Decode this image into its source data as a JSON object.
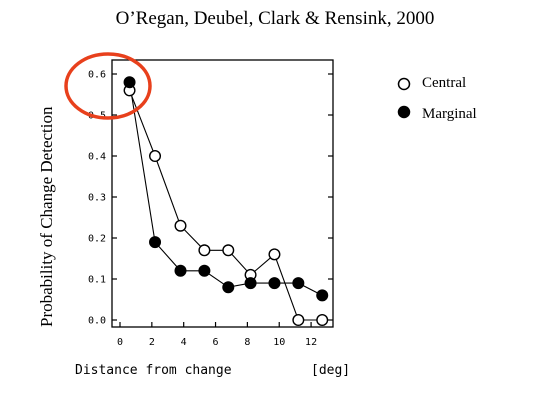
{
  "title": "O’Regan, Deubel, Clark & Rensink, 2000",
  "chart_data": {
    "type": "line",
    "xlabel": "Distance from change",
    "xunit": "[deg]",
    "ylabel": "Probability of Change Detection",
    "xlim": [
      0,
      13
    ],
    "ylim": [
      0,
      0.62
    ],
    "x_ticks": [
      0,
      2,
      4,
      6,
      8,
      10,
      12
    ],
    "y_ticks": [
      0.0,
      0.1,
      0.2,
      0.3,
      0.4,
      0.5,
      0.6
    ],
    "y_tick_labels": [
      "0.0",
      "0.1",
      "0.2",
      "0.3",
      "0.4",
      "0.5",
      "0.6"
    ],
    "legend_position": "top-right",
    "grid": false,
    "series": [
      {
        "name": "Central",
        "marker": "open-circle",
        "x": [
          0.6,
          2.2,
          3.8,
          5.3,
          6.8,
          8.2,
          9.7,
          11.2,
          12.7
        ],
        "y": [
          0.56,
          0.4,
          0.23,
          0.17,
          0.17,
          0.11,
          0.16,
          0.0,
          0.0
        ]
      },
      {
        "name": "Marginal",
        "marker": "filled-circle",
        "x": [
          0.6,
          2.2,
          3.8,
          5.3,
          6.8,
          8.2,
          9.7,
          11.2,
          12.7
        ],
        "y": [
          0.58,
          0.19,
          0.12,
          0.12,
          0.08,
          0.09,
          0.09,
          0.09,
          0.06
        ]
      }
    ],
    "annotation": {
      "shape": "ellipse",
      "color": "#e8401c",
      "highlights": "first data points at ~0.6"
    }
  }
}
